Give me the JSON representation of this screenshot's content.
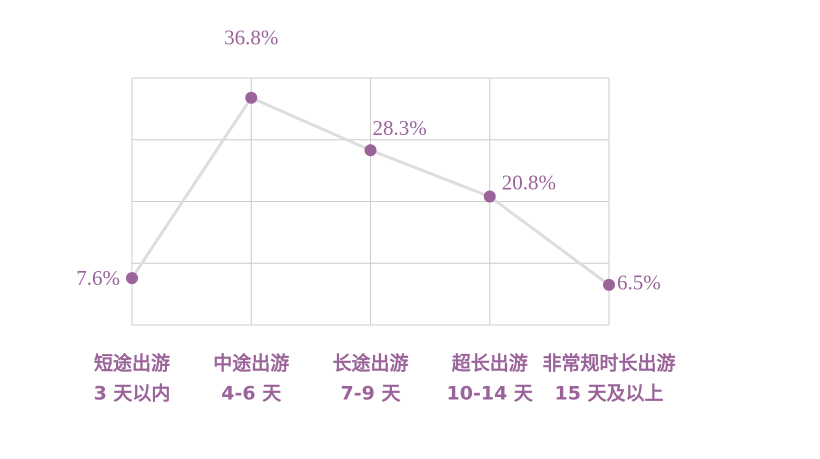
{
  "chart_data": {
    "type": "line",
    "categories": [
      [
        "短途出游",
        "3 天以内"
      ],
      [
        "中途出游",
        "4-6 天"
      ],
      [
        "长途出游",
        "7-9 天"
      ],
      [
        "超长出游",
        "10-14 天"
      ],
      [
        "非常规时长出游",
        "15 天及以上"
      ]
    ],
    "values": [
      7.6,
      36.8,
      28.3,
      20.8,
      6.5
    ],
    "value_labels": [
      "7.6%",
      "36.8%",
      "28.3%",
      "20.8%",
      "6.5%"
    ],
    "color": "#9a6399",
    "line_color": "#dddddd",
    "ylim": [
      0,
      40
    ],
    "yticks": [
      0,
      10,
      20,
      30,
      40
    ],
    "grid": true
  }
}
